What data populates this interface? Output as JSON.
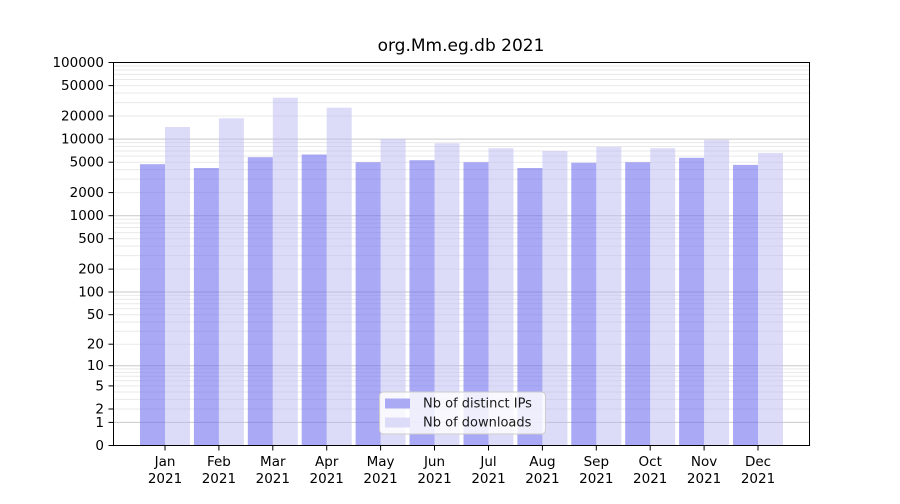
{
  "window": {
    "background": "#ffffff"
  },
  "chart_data": {
    "type": "bar",
    "title": "org.Mm.eg.db 2021",
    "categories": [
      "Jan 2021",
      "Feb 2021",
      "Mar 2021",
      "Apr 2021",
      "May 2021",
      "Jun 2021",
      "Jul 2021",
      "Aug 2021",
      "Sep 2021",
      "Oct 2021",
      "Nov 2021",
      "Dec 2021"
    ],
    "series": [
      {
        "name": "Nb of distinct IPs",
        "legend_swatch_color": "#a9a9f4",
        "bar_fill": "#7070ee",
        "bar_opacity": 0.6,
        "values": [
          4700,
          4200,
          5800,
          6300,
          5000,
          5300,
          5000,
          4200,
          4900,
          5000,
          5700,
          4600
        ]
      },
      {
        "name": "Nb of downloads",
        "legend_swatch_color": "#dcdcf8",
        "bar_fill": "#b9b9f1",
        "bar_opacity": 0.5,
        "values": [
          14400,
          18700,
          34700,
          25700,
          10000,
          8800,
          7600,
          7000,
          7900,
          7600,
          9800,
          6600
        ]
      }
    ],
    "yscale": "log10(1+y)",
    "ylim": [
      0,
      100000
    ],
    "y_ticks": [
      0,
      1,
      2,
      5,
      10,
      20,
      50,
      100,
      200,
      500,
      1000,
      2000,
      5000,
      10000,
      20000,
      50000,
      100000
    ],
    "grid": true,
    "legend_position": "lower center",
    "colors": {
      "major_grid": "#c9c9c9",
      "minor_grid": "#e9e9e9",
      "axis": "#000000",
      "text": "#000000",
      "legend_border": "#cccccc",
      "legend_bg_opacity": 0.8
    }
  }
}
